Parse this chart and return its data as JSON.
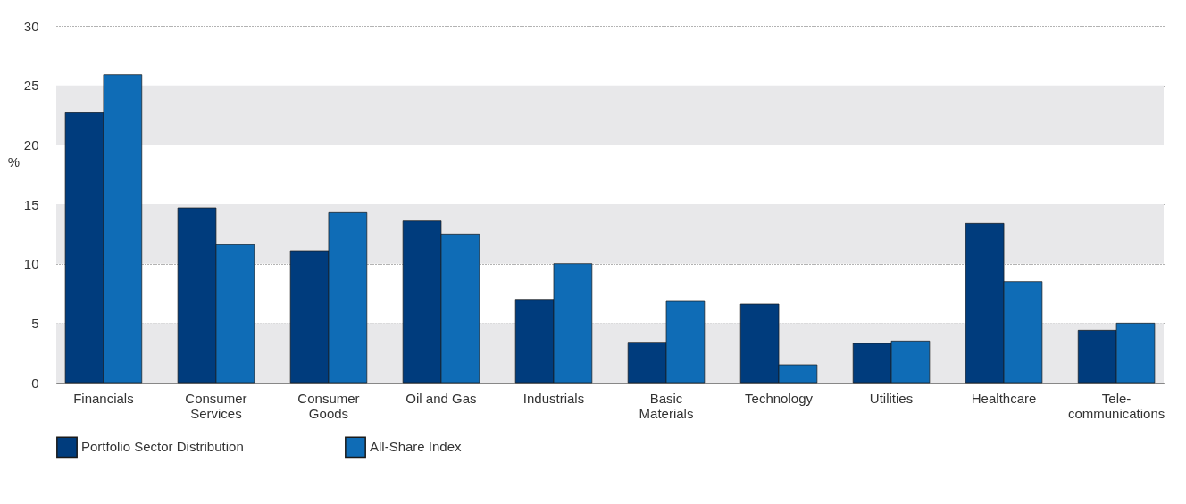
{
  "chart_data": {
    "type": "bar",
    "ylabel": "%",
    "categories": [
      "Financials",
      "Consumer Services",
      "Consumer Goods",
      "Oil and Gas",
      "Industrials",
      "Basic Materials",
      "Technology",
      "Utilities",
      "Healthcare",
      "Tele-communications"
    ],
    "series": [
      {
        "name": "Portfolio Sector Distribution",
        "color": "#003c7d",
        "values": [
          22.7,
          14.7,
          11.1,
          13.6,
          7.0,
          3.4,
          6.6,
          3.3,
          13.4,
          4.4
        ]
      },
      {
        "name": "All-Share Index",
        "color": "#0f6cb6",
        "values": [
          25.9,
          11.6,
          14.3,
          12.5,
          10.0,
          6.9,
          1.5,
          3.5,
          8.5,
          5.0
        ]
      }
    ],
    "ylim": [
      0,
      30
    ],
    "yticks": [
      0,
      5,
      10,
      15,
      20,
      25,
      30
    ],
    "bands": [
      {
        "axis": "y",
        "from": 0,
        "to": 5,
        "color": "#e8e8ea"
      },
      {
        "axis": "y",
        "from": 10,
        "to": 15,
        "color": "#e8e8ea"
      },
      {
        "axis": "y",
        "from": 20,
        "to": 25,
        "color": "#e8e8ea"
      }
    ],
    "grid": "y",
    "legend": "bottom"
  }
}
